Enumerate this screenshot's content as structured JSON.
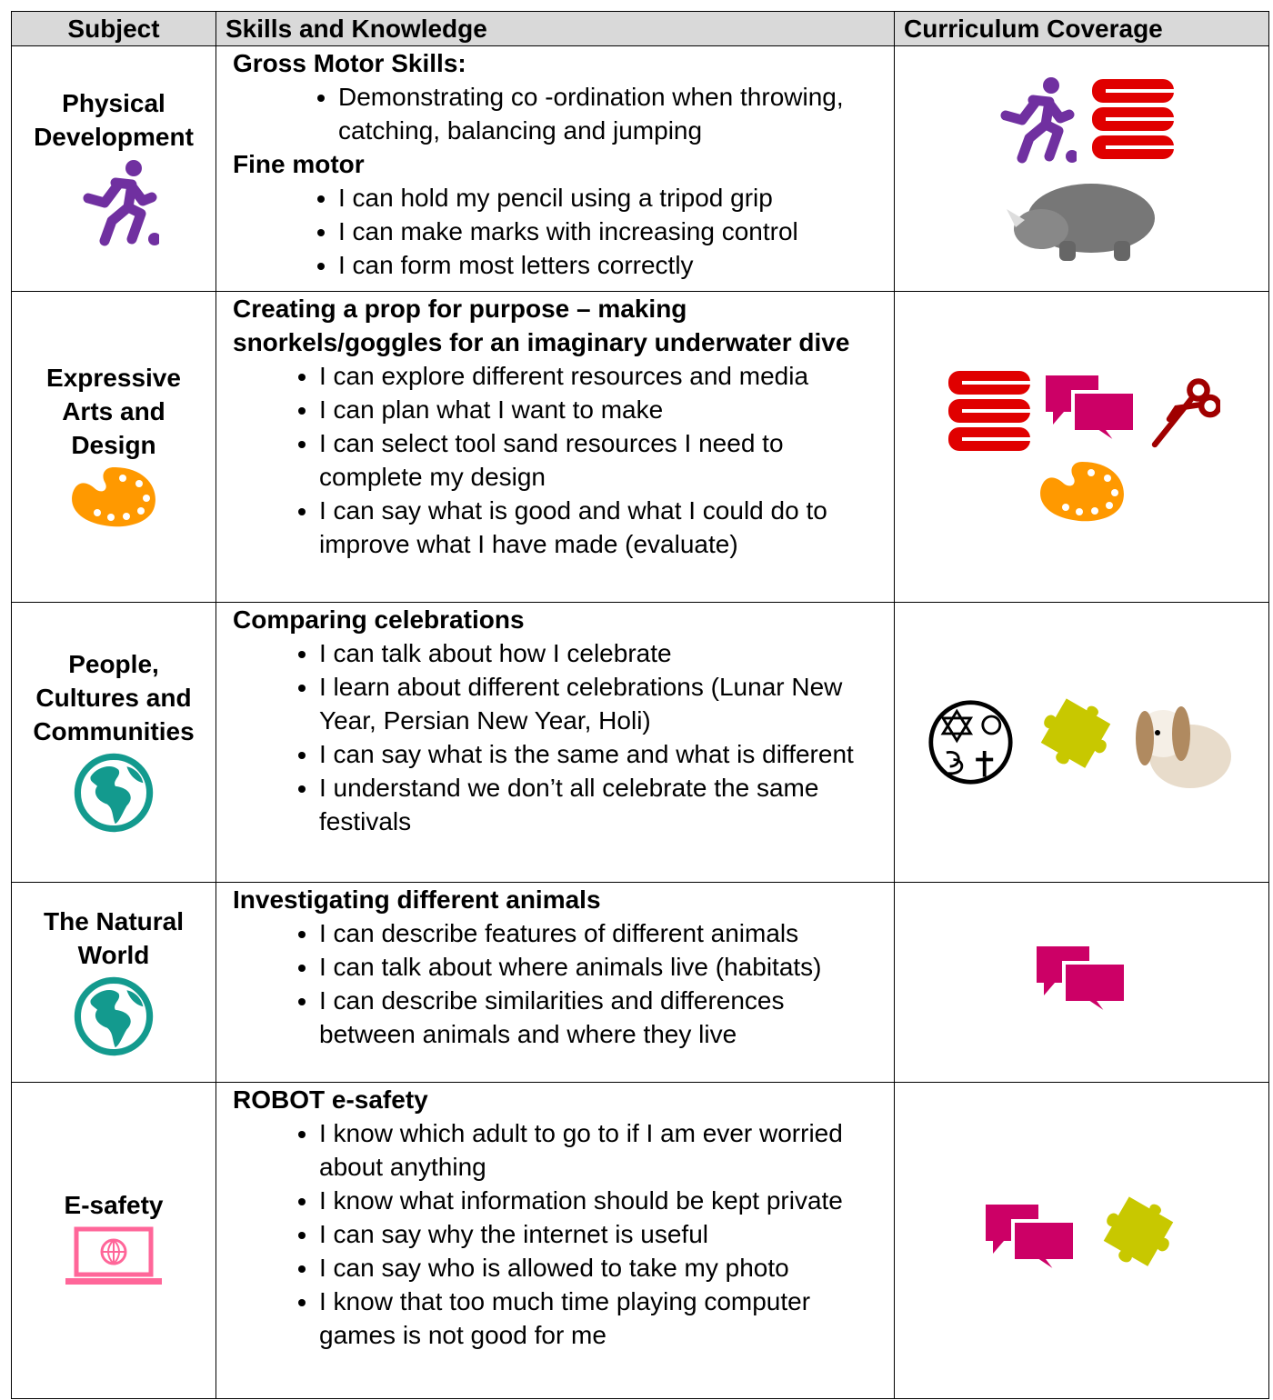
{
  "header": [
    "Subject",
    "Skills and Knowledge",
    "Curriculum Coverage"
  ],
  "rows": [
    {
      "subject": "Physical Development",
      "groups": [
        {
          "heading": "Gross Motor Skills:",
          "items": [
            "Demonstrating co -ordination when throwing, catching, balancing and jumping"
          ]
        },
        {
          "heading": "Fine motor",
          "items": [
            "I can hold my pencil using a tripod grip",
            "I can make marks with increasing control",
            "I can form most letters correctly"
          ]
        }
      ]
    },
    {
      "subject": "Expressive Arts and Design",
      "groups": [
        {
          "heading": "Creating a prop for purpose – making snorkels/goggles for an imaginary underwater dive",
          "items": [
            "I can explore different resources and media",
            "I can plan what I want to make",
            "I can select tool sand resources I need to complete my design",
            "I can say what is good and what I could do to improve what I have made (evaluate)"
          ]
        }
      ]
    },
    {
      "subject": "People, Cultures and Communities",
      "groups": [
        {
          "heading": "Comparing celebrations",
          "items": [
            "I can talk about how I celebrate",
            "I learn about different celebrations (Lunar New Year, Persian New Year, Holi)",
            "I can say what is the same and what is different",
            "I understand we don’t all celebrate the same festivals"
          ]
        }
      ]
    },
    {
      "subject": "The Natural World",
      "groups": [
        {
          "heading": "Investigating different animals",
          "items": [
            "I can describe features of different animals",
            "I can talk about where animals live (habitats)",
            "I can describe similarities and differences between animals and where they live"
          ]
        }
      ]
    },
    {
      "subject": "E-safety",
      "groups": [
        {
          "heading": "ROBOT e-safety",
          "items": [
            "I know which adult to go to if I am ever worried about anything",
            "I know what information should be kept private",
            "I can say why the internet is useful",
            "I can say who is allowed to take my photo",
            "I know that too much time playing computer games is not good for me"
          ]
        }
      ]
    }
  ]
}
